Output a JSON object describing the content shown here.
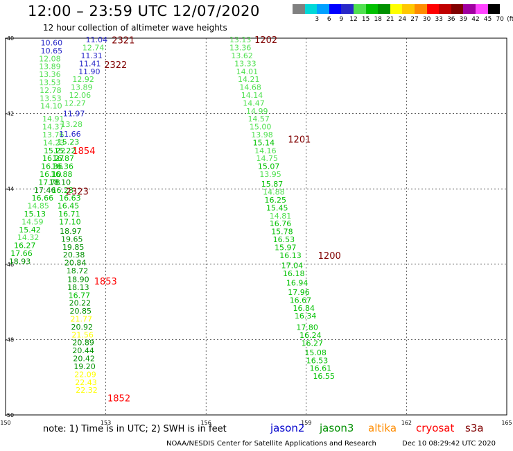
{
  "header": {
    "title": "12:00 – 23:59 UTC 12/07/2020",
    "subtitle": "12 hour collection of altimeter wave heights"
  },
  "legend": {
    "unit": "(ft)",
    "items": [
      {
        "label": "",
        "color": "#808080"
      },
      {
        "label": "3",
        "color": "#00d8d8"
      },
      {
        "label": "6",
        "color": "#00a0ff"
      },
      {
        "label": "9",
        "color": "#0000ff"
      },
      {
        "label": "12",
        "color": "#2828c8"
      },
      {
        "label": "15",
        "color": "#50e050"
      },
      {
        "label": "18",
        "color": "#00c000"
      },
      {
        "label": "21",
        "color": "#009000"
      },
      {
        "label": "24",
        "color": "#ffff00"
      },
      {
        "label": "27",
        "color": "#ffc800"
      },
      {
        "label": "30",
        "color": "#ff8c00"
      },
      {
        "label": "33",
        "color": "#ff0000"
      },
      {
        "label": "36",
        "color": "#c00000"
      },
      {
        "label": "39",
        "color": "#800000"
      },
      {
        "label": "42",
        "color": "#a000a0"
      },
      {
        "label": "45",
        "color": "#ff44ff"
      },
      {
        "label": "70",
        "color": "#000000"
      }
    ]
  },
  "map": {
    "lon_range": [
      150,
      165
    ],
    "lat_range": [
      -50,
      -40
    ],
    "lon_ticks": [
      "150",
      "153",
      "156",
      "159",
      "162",
      "165"
    ],
    "lat_ticks": [
      "-40",
      "-42",
      "-44",
      "-46",
      "-48",
      "-50"
    ],
    "observations": [
      {
        "text": "10.60",
        "lon": 151.05,
        "lat": -40.12,
        "color": "#2828c8"
      },
      {
        "text": "10.65",
        "lon": 151.05,
        "lat": -40.33,
        "color": "#2828c8"
      },
      {
        "text": "12.08",
        "lon": 151.0,
        "lat": -40.54,
        "color": "#50e050"
      },
      {
        "text": "13.89",
        "lon": 151.0,
        "lat": -40.75,
        "color": "#50e050"
      },
      {
        "text": "13.36",
        "lon": 151.0,
        "lat": -40.96,
        "color": "#50e050"
      },
      {
        "text": "13.53",
        "lon": 151.0,
        "lat": -41.17,
        "color": "#50e050"
      },
      {
        "text": "12.78",
        "lon": 151.02,
        "lat": -41.38,
        "color": "#50e050"
      },
      {
        "text": "13.53",
        "lon": 151.02,
        "lat": -41.59,
        "color": "#50e050"
      },
      {
        "text": "14.10",
        "lon": 151.04,
        "lat": -41.8,
        "color": "#50e050"
      },
      {
        "text": "14.91",
        "lon": 151.1,
        "lat": -42.14,
        "color": "#50e050"
      },
      {
        "text": "14.37",
        "lon": 151.1,
        "lat": -42.35,
        "color": "#50e050"
      },
      {
        "text": "13.76",
        "lon": 151.1,
        "lat": -42.56,
        "color": "#50e050"
      },
      {
        "text": "14.23",
        "lon": 151.12,
        "lat": -42.77,
        "color": "#50e050"
      },
      {
        "text": "15.22",
        "lon": 151.14,
        "lat": -42.98,
        "color": "#00c000"
      },
      {
        "text": "16.27",
        "lon": 151.1,
        "lat": -43.19,
        "color": "#00c000"
      },
      {
        "text": "16.36",
        "lon": 151.06,
        "lat": -43.4,
        "color": "#00c000"
      },
      {
        "text": "16.10",
        "lon": 151.02,
        "lat": -43.61,
        "color": "#00c000"
      },
      {
        "text": "17.78",
        "lon": 150.98,
        "lat": -43.82,
        "color": "#00c000"
      },
      {
        "text": "17.46",
        "lon": 150.85,
        "lat": -44.03,
        "color": "#009000"
      },
      {
        "text": "16.66",
        "lon": 150.78,
        "lat": -44.24,
        "color": "#00c000"
      },
      {
        "text": "14.85",
        "lon": 150.65,
        "lat": -44.45,
        "color": "#50e050"
      },
      {
        "text": "15.13",
        "lon": 150.55,
        "lat": -44.66,
        "color": "#00c000"
      },
      {
        "text": "14.59",
        "lon": 150.48,
        "lat": -44.87,
        "color": "#50e050"
      },
      {
        "text": "15.42",
        "lon": 150.4,
        "lat": -45.08,
        "color": "#00c000"
      },
      {
        "text": "14.32",
        "lon": 150.35,
        "lat": -45.29,
        "color": "#50e050"
      },
      {
        "text": "16.27",
        "lon": 150.25,
        "lat": -45.5,
        "color": "#00c000"
      },
      {
        "text": "17.66",
        "lon": 150.15,
        "lat": -45.71,
        "color": "#00c000"
      },
      {
        "text": "18.93",
        "lon": 150.1,
        "lat": -45.92,
        "color": "#009000"
      },
      {
        "text": "11.04",
        "lon": 152.4,
        "lat": -40.04,
        "color": "#2828c8"
      },
      {
        "text": "12.74",
        "lon": 152.3,
        "lat": -40.25,
        "color": "#50e050"
      },
      {
        "text": "11.31",
        "lon": 152.25,
        "lat": -40.46,
        "color": "#2828c8"
      },
      {
        "text": "11.41",
        "lon": 152.2,
        "lat": -40.67,
        "color": "#2828c8"
      },
      {
        "text": "11.90",
        "lon": 152.18,
        "lat": -40.88,
        "color": "#2828c8"
      },
      {
        "text": "12.92",
        "lon": 152.0,
        "lat": -41.09,
        "color": "#50e050"
      },
      {
        "text": "13.89",
        "lon": 151.95,
        "lat": -41.3,
        "color": "#50e050"
      },
      {
        "text": "12.06",
        "lon": 151.9,
        "lat": -41.51,
        "color": "#50e050"
      },
      {
        "text": "12.27",
        "lon": 151.75,
        "lat": -41.72,
        "color": "#50e050"
      },
      {
        "text": "11.97",
        "lon": 151.72,
        "lat": -42.0,
        "color": "#2828c8"
      },
      {
        "text": "13.28",
        "lon": 151.65,
        "lat": -42.28,
        "color": "#50e050"
      },
      {
        "text": "11.66",
        "lon": 151.6,
        "lat": -42.54,
        "color": "#2828c8"
      },
      {
        "text": "15.23",
        "lon": 151.55,
        "lat": -42.75,
        "color": "#00c000"
      },
      {
        "text": "15.22",
        "lon": 151.45,
        "lat": -42.98,
        "color": "#00c000"
      },
      {
        "text": "16.87",
        "lon": 151.4,
        "lat": -43.19,
        "color": "#00c000"
      },
      {
        "text": "16.36",
        "lon": 151.38,
        "lat": -43.4,
        "color": "#00c000"
      },
      {
        "text": "16.88",
        "lon": 151.35,
        "lat": -43.61,
        "color": "#00c000"
      },
      {
        "text": "18.10",
        "lon": 151.3,
        "lat": -43.82,
        "color": "#009000"
      },
      {
        "text": "16.23",
        "lon": 151.38,
        "lat": -44.03,
        "color": "#00c000"
      },
      {
        "text": "16.63",
        "lon": 151.6,
        "lat": -44.24,
        "color": "#00c000"
      },
      {
        "text": "16.45",
        "lon": 151.55,
        "lat": -44.45,
        "color": "#00c000"
      },
      {
        "text": "16.71",
        "lon": 151.58,
        "lat": -44.66,
        "color": "#00c000"
      },
      {
        "text": "17.10",
        "lon": 151.6,
        "lat": -44.87,
        "color": "#00c000"
      },
      {
        "text": "18.97",
        "lon": 151.62,
        "lat": -45.12,
        "color": "#009000"
      },
      {
        "text": "19.65",
        "lon": 151.66,
        "lat": -45.33,
        "color": "#009000"
      },
      {
        "text": "19.85",
        "lon": 151.7,
        "lat": -45.54,
        "color": "#009000"
      },
      {
        "text": "20.38",
        "lon": 151.72,
        "lat": -45.75,
        "color": "#009000"
      },
      {
        "text": "20.84",
        "lon": 151.76,
        "lat": -45.96,
        "color": "#009000"
      },
      {
        "text": "18.72",
        "lon": 151.82,
        "lat": -46.17,
        "color": "#009000"
      },
      {
        "text": "18.90",
        "lon": 151.85,
        "lat": -46.4,
        "color": "#009000"
      },
      {
        "text": "18.13",
        "lon": 151.85,
        "lat": -46.61,
        "color": "#009000"
      },
      {
        "text": "16.77",
        "lon": 151.88,
        "lat": -46.82,
        "color": "#00c000"
      },
      {
        "text": "20.22",
        "lon": 151.9,
        "lat": -47.03,
        "color": "#009000"
      },
      {
        "text": "20.85",
        "lon": 151.92,
        "lat": -47.24,
        "color": "#009000"
      },
      {
        "text": "21.77",
        "lon": 151.94,
        "lat": -47.45,
        "color": "#ffff00"
      },
      {
        "text": "20.92",
        "lon": 151.96,
        "lat": -47.66,
        "color": "#009000"
      },
      {
        "text": "21.56",
        "lon": 151.98,
        "lat": -47.87,
        "color": "#ffff00"
      },
      {
        "text": "20.89",
        "lon": 152.0,
        "lat": -48.08,
        "color": "#009000"
      },
      {
        "text": "20.44",
        "lon": 152.0,
        "lat": -48.29,
        "color": "#009000"
      },
      {
        "text": "20.42",
        "lon": 152.02,
        "lat": -48.5,
        "color": "#009000"
      },
      {
        "text": "19.20",
        "lon": 152.04,
        "lat": -48.71,
        "color": "#009000"
      },
      {
        "text": "22.09",
        "lon": 152.06,
        "lat": -48.92,
        "color": "#ffff00"
      },
      {
        "text": "22.43",
        "lon": 152.08,
        "lat": -49.13,
        "color": "#ffff00"
      },
      {
        "text": "22.32",
        "lon": 152.1,
        "lat": -49.34,
        "color": "#ffff00"
      },
      {
        "text": "13.13",
        "lon": 156.7,
        "lat": -40.04,
        "color": "#50e050"
      },
      {
        "text": "13.36",
        "lon": 156.7,
        "lat": -40.25,
        "color": "#50e050"
      },
      {
        "text": "13.62",
        "lon": 156.75,
        "lat": -40.46,
        "color": "#50e050"
      },
      {
        "text": "13.33",
        "lon": 156.85,
        "lat": -40.67,
        "color": "#50e050"
      },
      {
        "text": "14.01",
        "lon": 156.9,
        "lat": -40.88,
        "color": "#50e050"
      },
      {
        "text": "14.21",
        "lon": 156.95,
        "lat": -41.09,
        "color": "#50e050"
      },
      {
        "text": "14.68",
        "lon": 157.0,
        "lat": -41.3,
        "color": "#50e050"
      },
      {
        "text": "14.14",
        "lon": 157.05,
        "lat": -41.51,
        "color": "#50e050"
      },
      {
        "text": "14.47",
        "lon": 157.1,
        "lat": -41.72,
        "color": "#50e050"
      },
      {
        "text": "14.99",
        "lon": 157.2,
        "lat": -41.93,
        "color": "#50e050"
      },
      {
        "text": "14.57",
        "lon": 157.25,
        "lat": -42.14,
        "color": "#50e050"
      },
      {
        "text": "15.00",
        "lon": 157.3,
        "lat": -42.35,
        "color": "#50e050"
      },
      {
        "text": "13.98",
        "lon": 157.35,
        "lat": -42.56,
        "color": "#50e050"
      },
      {
        "text": "15.14",
        "lon": 157.4,
        "lat": -42.77,
        "color": "#00c000"
      },
      {
        "text": "14.16",
        "lon": 157.45,
        "lat": -42.98,
        "color": "#50e050"
      },
      {
        "text": "14.75",
        "lon": 157.5,
        "lat": -43.19,
        "color": "#50e050"
      },
      {
        "text": "15.07",
        "lon": 157.55,
        "lat": -43.4,
        "color": "#00c000"
      },
      {
        "text": "13.95",
        "lon": 157.6,
        "lat": -43.61,
        "color": "#50e050"
      },
      {
        "text": "15.87",
        "lon": 157.65,
        "lat": -43.87,
        "color": "#00c000"
      },
      {
        "text": "14.88",
        "lon": 157.7,
        "lat": -44.08,
        "color": "#50e050"
      },
      {
        "text": "16.25",
        "lon": 157.75,
        "lat": -44.29,
        "color": "#00c000"
      },
      {
        "text": "15.45",
        "lon": 157.8,
        "lat": -44.5,
        "color": "#00c000"
      },
      {
        "text": "14.81",
        "lon": 157.9,
        "lat": -44.71,
        "color": "#50e050"
      },
      {
        "text": "16.76",
        "lon": 157.9,
        "lat": -44.92,
        "color": "#00c000"
      },
      {
        "text": "15.78",
        "lon": 157.95,
        "lat": -45.13,
        "color": "#00c000"
      },
      {
        "text": "16.53",
        "lon": 158.0,
        "lat": -45.34,
        "color": "#00c000"
      },
      {
        "text": "15.97",
        "lon": 158.05,
        "lat": -45.55,
        "color": "#00c000"
      },
      {
        "text": "16.13",
        "lon": 158.2,
        "lat": -45.76,
        "color": "#00c000"
      },
      {
        "text": "17.04",
        "lon": 158.25,
        "lat": -46.03,
        "color": "#00c000"
      },
      {
        "text": "16.18",
        "lon": 158.3,
        "lat": -46.24,
        "color": "#00c000"
      },
      {
        "text": "16.94",
        "lon": 158.4,
        "lat": -46.49,
        "color": "#00c000"
      },
      {
        "text": "17.96",
        "lon": 158.45,
        "lat": -46.74,
        "color": "#00c000"
      },
      {
        "text": "16.67",
        "lon": 158.5,
        "lat": -46.95,
        "color": "#00c000"
      },
      {
        "text": "16.84",
        "lon": 158.6,
        "lat": -47.16,
        "color": "#00c000"
      },
      {
        "text": "16.34",
        "lon": 158.65,
        "lat": -47.37,
        "color": "#00c000"
      },
      {
        "text": "17.80",
        "lon": 158.7,
        "lat": -47.67,
        "color": "#00c000"
      },
      {
        "text": "16.24",
        "lon": 158.8,
        "lat": -47.88,
        "color": "#00c000"
      },
      {
        "text": "16.27",
        "lon": 158.85,
        "lat": -48.09,
        "color": "#00c000"
      },
      {
        "text": "15.08",
        "lon": 158.95,
        "lat": -48.34,
        "color": "#00c000"
      },
      {
        "text": "16.53",
        "lon": 159.0,
        "lat": -48.55,
        "color": "#00c000"
      },
      {
        "text": "16.61",
        "lon": 159.1,
        "lat": -48.76,
        "color": "#00c000"
      },
      {
        "text": "16.55",
        "lon": 159.2,
        "lat": -48.97,
        "color": "#00c000"
      }
    ],
    "time_labels": [
      {
        "text": "2321",
        "lon": 153.18,
        "lat": -40.05,
        "color": "#800000"
      },
      {
        "text": "2322",
        "lon": 152.95,
        "lat": -40.7,
        "color": "#800000"
      },
      {
        "text": "1854",
        "lon": 152.0,
        "lat": -42.98,
        "color": "#ff0000"
      },
      {
        "text": "2323",
        "lon": 151.8,
        "lat": -44.06,
        "color": "#800000"
      },
      {
        "text": "1853",
        "lon": 152.65,
        "lat": -46.45,
        "color": "#ff0000"
      },
      {
        "text": "1852",
        "lon": 153.05,
        "lat": -49.55,
        "color": "#ff0000"
      },
      {
        "text": "1202",
        "lon": 157.45,
        "lat": -40.04,
        "color": "#800000"
      },
      {
        "text": "1201",
        "lon": 158.45,
        "lat": -42.68,
        "color": "#800000"
      },
      {
        "text": "1200",
        "lon": 159.35,
        "lat": -45.76,
        "color": "#800000"
      }
    ]
  },
  "footer": {
    "note": "note:  1) Time is in UTC;  2) SWH is in feet",
    "satellites": [
      {
        "name": "jason2",
        "color": "#0000cc"
      },
      {
        "name": "jason3",
        "color": "#009000"
      },
      {
        "name": "altika",
        "color": "#ff8c00"
      },
      {
        "name": "cryosat",
        "color": "#ff0000"
      },
      {
        "name": "s3a",
        "color": "#800000"
      }
    ],
    "credit": "NOAA/NESDIS Center for Satellite Applications and Research",
    "generated": "Dec 10 08:29:42 UTC 2020"
  }
}
